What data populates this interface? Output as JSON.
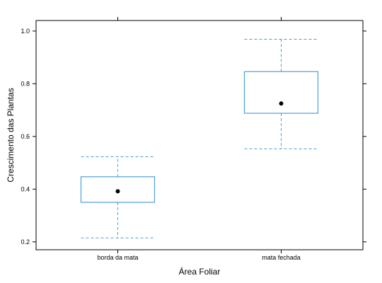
{
  "chart_data": {
    "type": "box",
    "xlabel": "Área Foliar",
    "ylabel": "Crescimento das Plantas",
    "ylim": [
      0.17,
      1.04
    ],
    "yticks": [
      0.2,
      0.4,
      0.6,
      0.8,
      1.0
    ],
    "ytick_labels": [
      "0.2",
      "0.4",
      "0.6",
      "0.8",
      "1.0"
    ],
    "categories": [
      "borda da mata",
      "mata fechada"
    ],
    "boxes": [
      {
        "category": "borda da mata",
        "whisker_low": 0.215,
        "q1": 0.35,
        "median": 0.392,
        "q3": 0.447,
        "whisker_high": 0.523
      },
      {
        "category": "mata fechada",
        "whisker_low": 0.553,
        "q1": 0.688,
        "median": 0.725,
        "q3": 0.846,
        "whisker_high": 0.969
      }
    ],
    "box_color": "#4a9fd8",
    "median_marker_color": "#000000"
  }
}
